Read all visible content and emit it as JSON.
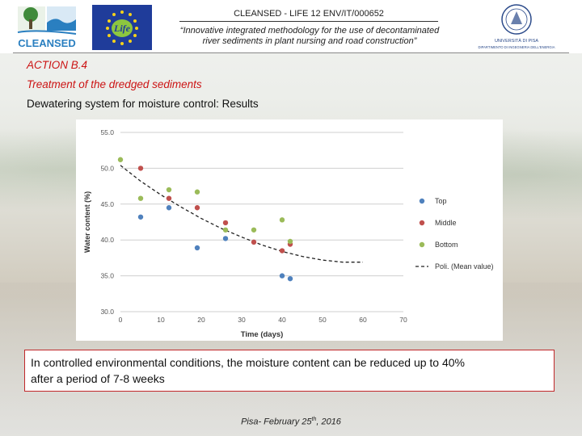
{
  "header": {
    "project_code": "CLEANSED - LIFE 12 ENV/IT/000652",
    "description_line1": "“Innovative integrated methodology for the use of decontaminated",
    "description_line2": "river sediments in plant nursing and road construction”",
    "logo_cleansed": "CLEANSED",
    "logo_life": "Life",
    "logo_uni_line1": "UNIVERSITÀ DI PISA",
    "logo_uni_line2": "DIPARTIMENTO DI INGEGNERIA DELL'ENERGIA"
  },
  "section": {
    "action": "ACTION B.4",
    "subtitle": "Treatment of the dredged sediments",
    "heading": "Dewatering system for moisture control: Results"
  },
  "callout": {
    "line1": "In controlled environmental conditions, the moisture content can be reduced up to 40%",
    "line2": "after a period of 7-8 weeks"
  },
  "footer": {
    "text": "Pisa- February 25",
    "superscript": "th",
    "year": ", 2016"
  },
  "chart_data": {
    "type": "scatter",
    "title": "",
    "xlabel": "Time (days)",
    "ylabel": "Water content (%)",
    "xlim": [
      0,
      70
    ],
    "ylim": [
      30,
      55
    ],
    "xticks": [
      0,
      10,
      20,
      30,
      40,
      50,
      60,
      70
    ],
    "yticks": [
      30.0,
      35.0,
      40.0,
      45.0,
      50.0,
      55.0
    ],
    "ytick_labels": [
      "30.0",
      "35.0",
      "40.0",
      "45.0",
      "50.0",
      "55.0"
    ],
    "grid": "horizontal",
    "legend_position": "right",
    "series": [
      {
        "name": "Top",
        "color": "#4f81bd",
        "x": [
          5,
          12,
          19,
          26,
          40,
          42
        ],
        "y": [
          43.2,
          44.5,
          38.9,
          40.2,
          35.0,
          34.6
        ]
      },
      {
        "name": "Middle",
        "color": "#c0504d",
        "x": [
          5,
          12,
          19,
          26,
          33,
          40,
          42
        ],
        "y": [
          50.0,
          45.8,
          44.5,
          42.4,
          39.7,
          38.5,
          39.4
        ]
      },
      {
        "name": "Bottom",
        "color": "#9bbb59",
        "x": [
          0,
          5,
          12,
          19,
          26,
          33,
          40,
          42
        ],
        "y": [
          51.2,
          45.8,
          47.0,
          46.7,
          41.4,
          41.4,
          42.8,
          39.8
        ]
      }
    ],
    "trendline": {
      "name": "Poli. (Mean value)",
      "style": "dashed",
      "color": "#222222",
      "x": [
        0,
        5,
        10,
        15,
        20,
        25,
        30,
        35,
        40,
        45,
        50,
        55,
        60
      ],
      "y": [
        50.4,
        48.2,
        46.3,
        44.6,
        43.0,
        41.6,
        40.4,
        39.3,
        38.4,
        37.7,
        37.2,
        36.9,
        36.9
      ]
    }
  }
}
